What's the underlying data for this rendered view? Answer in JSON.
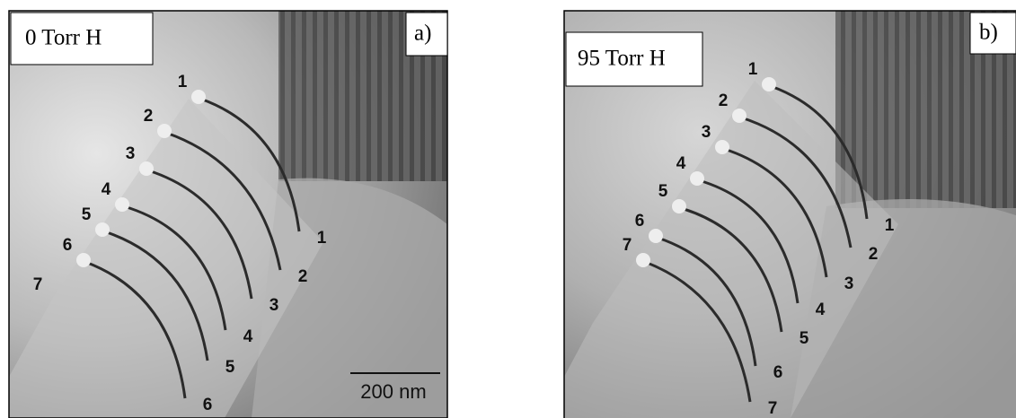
{
  "panels": [
    {
      "condition": "0 Torr H",
      "letter": "a)",
      "left_labels": [
        "1",
        "2",
        "3",
        "4",
        "5",
        "6",
        "7"
      ],
      "right_labels": [
        "1",
        "2",
        "3",
        "4",
        "5",
        "6"
      ],
      "scale_bar": "200 nm"
    },
    {
      "condition": "95 Torr H",
      "letter": "b)",
      "left_labels": [
        "1",
        "2",
        "3",
        "4",
        "5",
        "6",
        "7"
      ],
      "right_labels": [
        "1",
        "2",
        "3",
        "4",
        "5",
        "6",
        "7"
      ]
    }
  ]
}
